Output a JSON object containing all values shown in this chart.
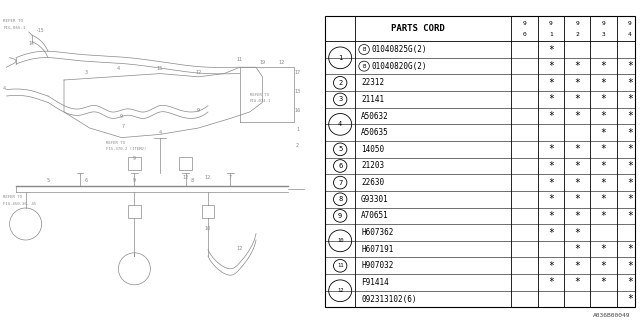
{
  "title": "PARTS CORD",
  "diagram_label": "A036B00049",
  "columns_top": [
    "9",
    "9",
    "9",
    "9",
    "9"
  ],
  "columns_bot": [
    "0",
    "1",
    "2",
    "3",
    "4"
  ],
  "rows": [
    {
      "num": "1",
      "part": "B01040825G(2)",
      "b_prefix": true,
      "marks": [
        false,
        true,
        false,
        false,
        false
      ]
    },
    {
      "num": "1",
      "part": "B01040820G(2)",
      "b_prefix": true,
      "marks": [
        false,
        true,
        true,
        true,
        true
      ]
    },
    {
      "num": "2",
      "part": "22312",
      "b_prefix": false,
      "marks": [
        false,
        true,
        true,
        true,
        true
      ]
    },
    {
      "num": "3",
      "part": "21141",
      "b_prefix": false,
      "marks": [
        false,
        true,
        true,
        true,
        true
      ]
    },
    {
      "num": "4",
      "part": "A50632",
      "b_prefix": false,
      "marks": [
        false,
        true,
        true,
        true,
        true
      ]
    },
    {
      "num": "4",
      "part": "A50635",
      "b_prefix": false,
      "marks": [
        false,
        false,
        false,
        true,
        true
      ]
    },
    {
      "num": "5",
      "part": "14050",
      "b_prefix": false,
      "marks": [
        false,
        true,
        true,
        true,
        true
      ]
    },
    {
      "num": "6",
      "part": "21203",
      "b_prefix": false,
      "marks": [
        false,
        true,
        true,
        true,
        true
      ]
    },
    {
      "num": "7",
      "part": "22630",
      "b_prefix": false,
      "marks": [
        false,
        true,
        true,
        true,
        true
      ]
    },
    {
      "num": "8",
      "part": "G93301",
      "b_prefix": false,
      "marks": [
        false,
        true,
        true,
        true,
        true
      ]
    },
    {
      "num": "9",
      "part": "A70651",
      "b_prefix": false,
      "marks": [
        false,
        true,
        true,
        true,
        true
      ]
    },
    {
      "num": "10",
      "part": "H607362",
      "b_prefix": false,
      "marks": [
        false,
        true,
        true,
        false,
        false
      ]
    },
    {
      "num": "10",
      "part": "H607191",
      "b_prefix": false,
      "marks": [
        false,
        false,
        true,
        true,
        true
      ]
    },
    {
      "num": "11",
      "part": "H907032",
      "b_prefix": false,
      "marks": [
        false,
        true,
        true,
        true,
        true
      ]
    },
    {
      "num": "12",
      "part": "F91414",
      "b_prefix": false,
      "marks": [
        false,
        true,
        true,
        true,
        true
      ]
    },
    {
      "num": "12",
      "part": "092313102(6)",
      "b_prefix": false,
      "marks": [
        false,
        false,
        false,
        false,
        true
      ]
    }
  ],
  "bg_color": "#ffffff",
  "text_color": "#000000",
  "line_color": "#000000",
  "diagram_line_color": "#888888",
  "font_size": 5.5,
  "header_font_size": 6.5,
  "item_font_size": 5.0
}
